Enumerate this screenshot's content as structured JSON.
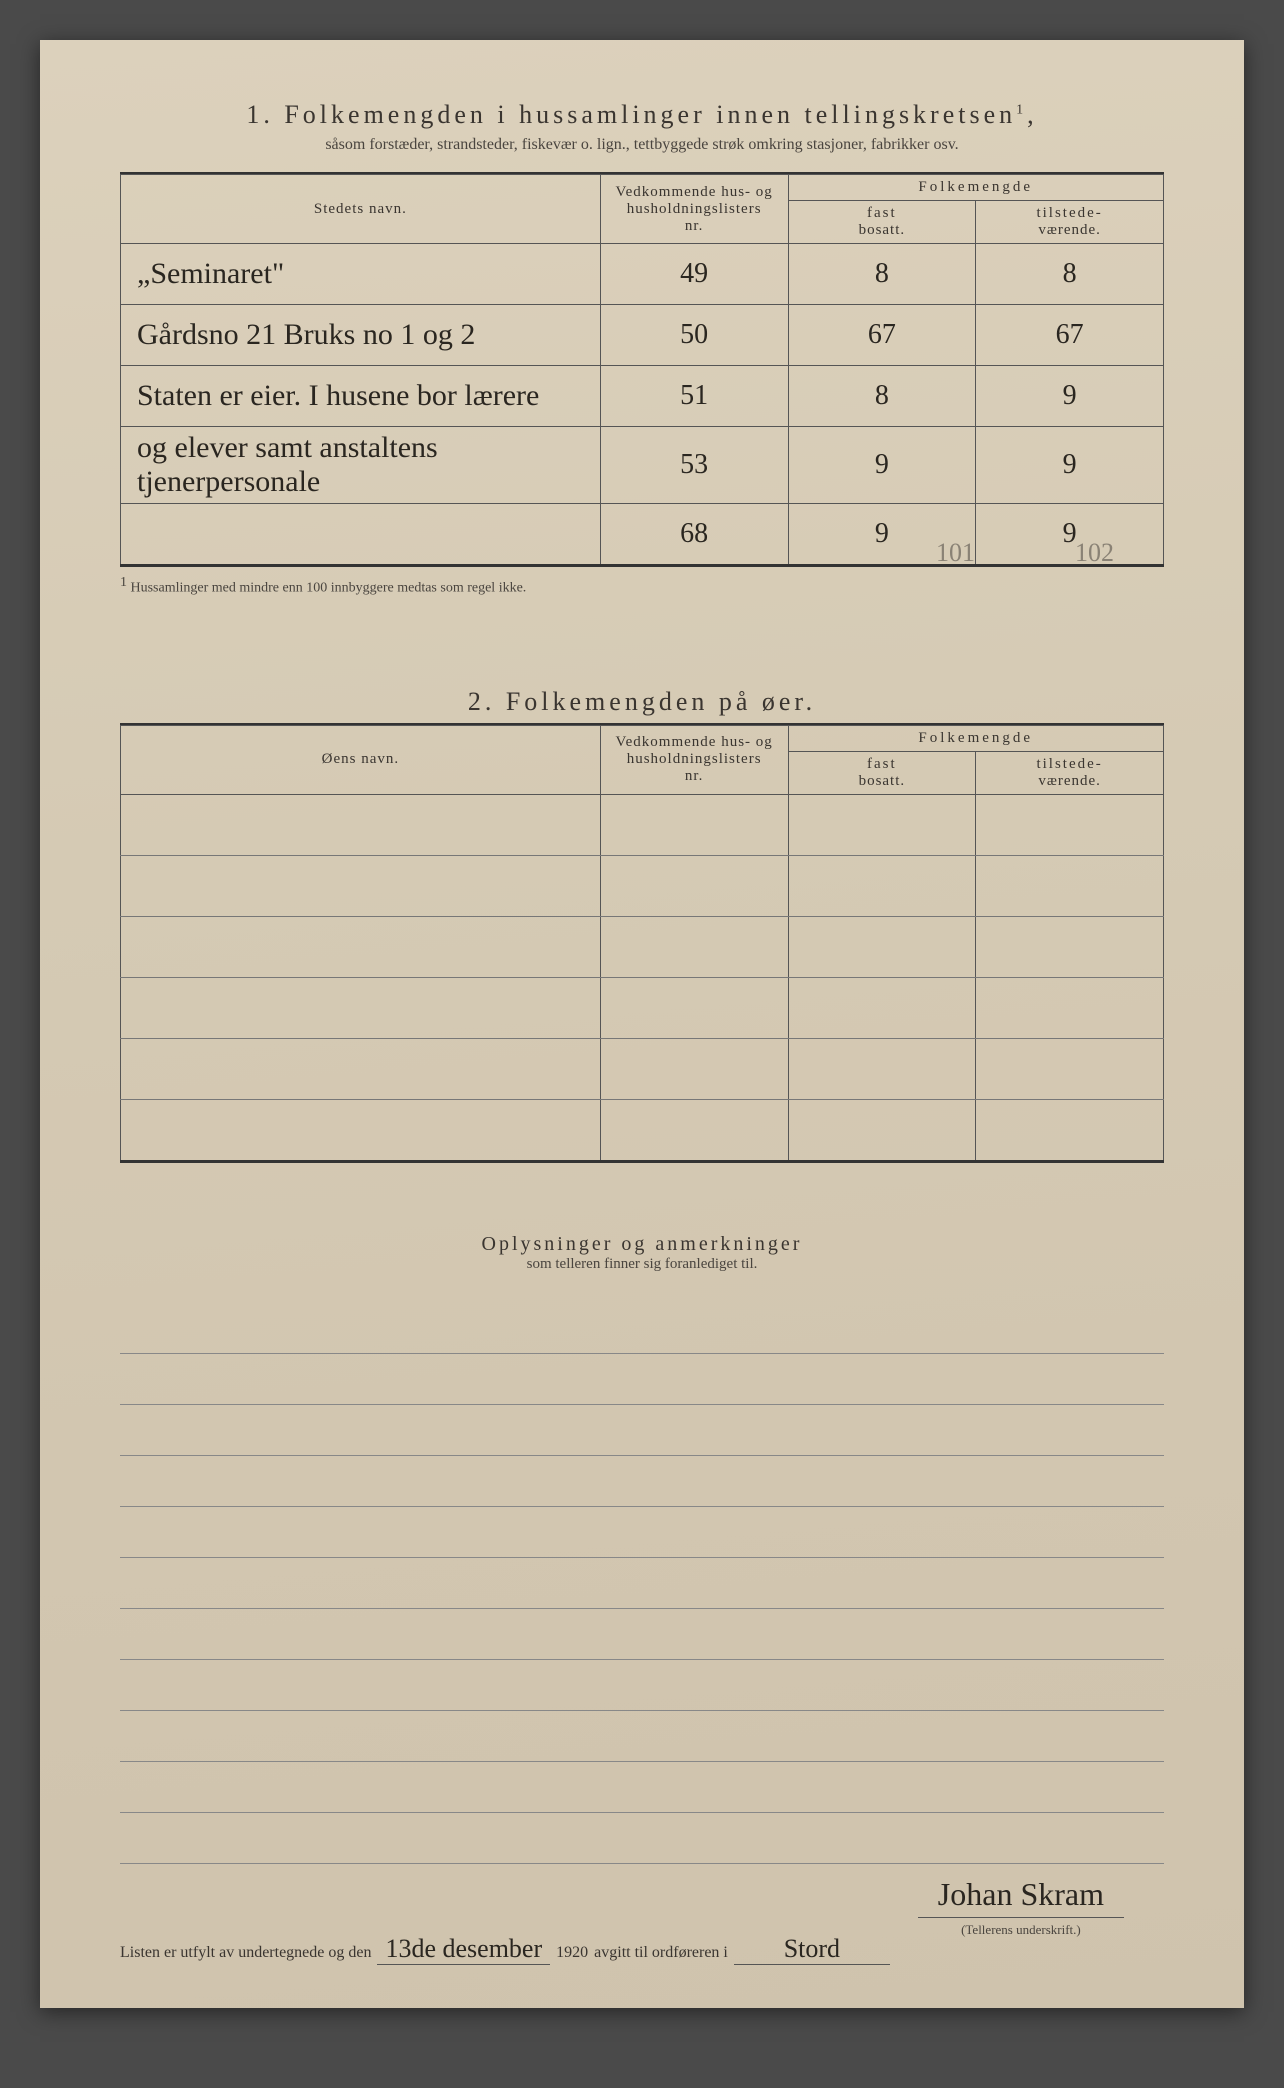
{
  "section1": {
    "number": "1.",
    "title": "Folkemengden i hussamlinger innen tellingskretsen",
    "title_sup": "1",
    "subtitle": "såsom forstæder, strandsteder, fiskevær o. lign., tettbyggede strøk omkring stasjoner, fabrikker osv.",
    "headers": {
      "name": "Stedets navn.",
      "nr_line1": "Vedkommende hus- og",
      "nr_line2": "husholdningslisters",
      "nr_line3": "nr.",
      "folk": "Folkemengde",
      "fast_line1": "fast",
      "fast_line2": "bosatt.",
      "til_line1": "tilstede-",
      "til_line2": "værende."
    },
    "rows": [
      {
        "name": "„Seminaret\"",
        "nr": "49",
        "fast": "8",
        "til": "8"
      },
      {
        "name": "Gårdsno 21 Bruks no 1 og 2",
        "nr": "50",
        "fast": "67",
        "til": "67"
      },
      {
        "name": "Staten er eier. I husene bor lærere",
        "nr": "51",
        "fast": "8",
        "til": "9"
      },
      {
        "name": "og elever samt anstaltens tjenerpersonale",
        "nr": "53",
        "fast": "9",
        "til": "9"
      },
      {
        "name": "",
        "nr": "68",
        "fast": "9",
        "til": "9"
      }
    ],
    "footnote_sup": "1",
    "footnote": "Hussamlinger med mindre enn 100 innbyggere medtas som regel ikke.",
    "pencil_total_1": "101",
    "pencil_total_2": "102"
  },
  "section2": {
    "number": "2.",
    "title": "Folkemengden på øer.",
    "headers": {
      "name": "Øens navn.",
      "nr_line1": "Vedkommende hus- og",
      "nr_line2": "husholdningslisters",
      "nr_line3": "nr.",
      "folk": "Folkemengde",
      "fast_line1": "fast",
      "fast_line2": "bosatt.",
      "til_line1": "tilstede-",
      "til_line2": "værende."
    }
  },
  "section3": {
    "title": "Oplysninger og anmerkninger",
    "subtitle": "som telleren finner sig foranlediget til."
  },
  "signature": {
    "prefix": "Listen er utfylt av undertegnede og den",
    "date": "13de desember",
    "year": "1920",
    "mid": "avgitt til ordføreren i",
    "place": "Stord",
    "name": "Johan Skram",
    "caption": "(Tellerens underskrift.)"
  }
}
